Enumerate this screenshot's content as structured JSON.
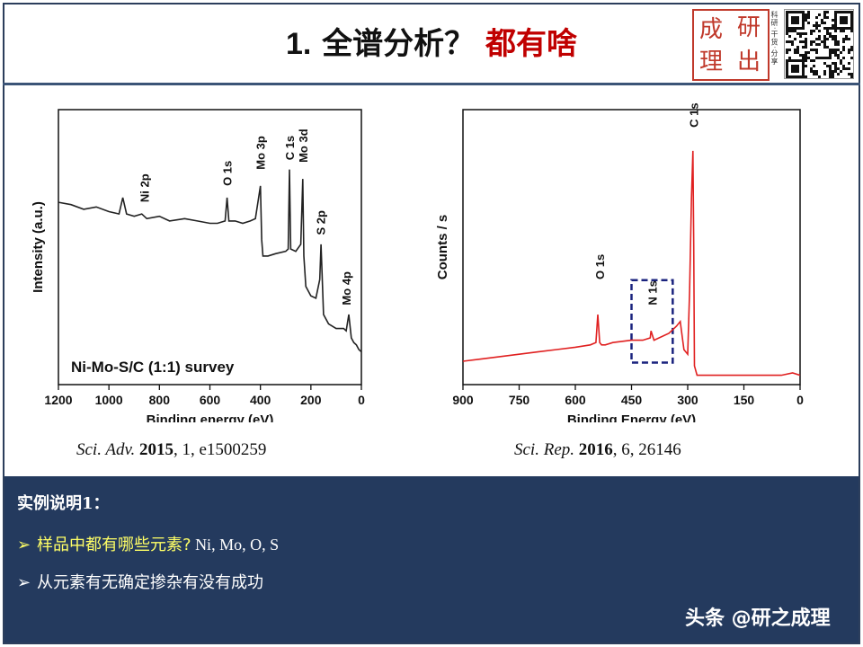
{
  "header": {
    "title_number": "1.",
    "title_main": "全谱分析？",
    "title_red": "都有啥",
    "seal_chars": [
      "成",
      "研",
      "理",
      "出"
    ],
    "seal_side": "科研·干货·分享"
  },
  "chart_data": [
    {
      "type": "line",
      "annotation": "Ni-Mo-S/C (1:1) survey",
      "xlabel": "Binding energy (eV)",
      "ylabel": "Intensity (a.u.)",
      "x_ticks": [
        "1200",
        "1000",
        "800",
        "600",
        "400",
        "200",
        "0"
      ],
      "xlim": [
        1200,
        0
      ],
      "reversed_x": true,
      "color": "#222222",
      "series": [
        {
          "x": [
            1200,
            1150,
            1100,
            1050,
            1000,
            960,
            945,
            930,
            900,
            870,
            850,
            800,
            760,
            700,
            650,
            600,
            570,
            540,
            532,
            525,
            500,
            470,
            440,
            420,
            410,
            400,
            395,
            390,
            370,
            340,
            300,
            290,
            285,
            280,
            260,
            240,
            232,
            228,
            220,
            200,
            180,
            165,
            160,
            150,
            130,
            100,
            70,
            60,
            50,
            40,
            30,
            20,
            10,
            0
          ],
          "y": [
            0.78,
            0.77,
            0.75,
            0.76,
            0.74,
            0.73,
            0.8,
            0.73,
            0.72,
            0.73,
            0.71,
            0.72,
            0.7,
            0.71,
            0.7,
            0.69,
            0.69,
            0.7,
            0.8,
            0.7,
            0.7,
            0.69,
            0.7,
            0.71,
            0.78,
            0.85,
            0.62,
            0.55,
            0.55,
            0.56,
            0.57,
            0.58,
            0.92,
            0.58,
            0.57,
            0.6,
            0.88,
            0.55,
            0.42,
            0.38,
            0.37,
            0.45,
            0.6,
            0.3,
            0.26,
            0.24,
            0.24,
            0.23,
            0.3,
            0.2,
            0.18,
            0.17,
            0.15,
            0.14
          ]
        }
      ],
      "peak_labels": [
        {
          "x": 860,
          "y": 0.78,
          "text": "Ni 2p"
        },
        {
          "x": 532,
          "y": 0.85,
          "text": "O 1s"
        },
        {
          "x": 400,
          "y": 0.92,
          "text": "Mo 3p"
        },
        {
          "x": 285,
          "y": 0.96,
          "text": "C 1s"
        },
        {
          "x": 232,
          "y": 0.95,
          "text": "Mo 3d"
        },
        {
          "x": 162,
          "y": 0.64,
          "text": "S 2p"
        },
        {
          "x": 60,
          "y": 0.34,
          "text": "Mo 4p"
        }
      ],
      "citation": {
        "journal": "Sci. Adv.",
        "year": "2015",
        "rest": ", 1, e1500259"
      }
    },
    {
      "type": "line",
      "xlabel": "Binding Energy (eV)",
      "ylabel": "Counts / s",
      "x_ticks": [
        "900",
        "750",
        "600",
        "450",
        "300",
        "150",
        "0"
      ],
      "xlim": [
        900,
        0
      ],
      "reversed_x": true,
      "color": "#e02020",
      "series": [
        {
          "x": [
            900,
            850,
            800,
            750,
            700,
            650,
            600,
            560,
            545,
            540,
            535,
            530,
            520,
            500,
            450,
            420,
            400,
            398,
            390,
            350,
            330,
            320,
            310,
            300,
            295,
            290,
            286,
            284,
            282,
            275,
            260,
            200,
            150,
            100,
            50,
            20,
            0
          ],
          "y": [
            0.1,
            0.11,
            0.12,
            0.13,
            0.14,
            0.15,
            0.16,
            0.17,
            0.18,
            0.3,
            0.18,
            0.17,
            0.17,
            0.18,
            0.19,
            0.19,
            0.2,
            0.23,
            0.19,
            0.22,
            0.25,
            0.27,
            0.15,
            0.13,
            0.4,
            0.8,
            1.0,
            0.6,
            0.08,
            0.04,
            0.04,
            0.04,
            0.04,
            0.04,
            0.04,
            0.05,
            0.04
          ]
        }
      ],
      "peak_labels": [
        {
          "x": 535,
          "y": 0.45,
          "text": "O 1s"
        },
        {
          "x": 395,
          "y": 0.34,
          "text": "N 1s"
        },
        {
          "x": 284,
          "y": 1.1,
          "text": "C 1s"
        }
      ],
      "highlight_box": {
        "x_from": 450,
        "x_to": 340,
        "style": "dashed",
        "color": "#1a237e"
      },
      "citation": {
        "journal": "Sci. Rep.",
        "year": "2016",
        "rest": ", 6, 26146"
      }
    }
  ],
  "panel": {
    "heading": "实例说明1：",
    "bullet1_cn": "样品中都有哪些元素?",
    "bullet1_en": " Ni, Mo, O, S",
    "bullet2": "从元素有无确定掺杂有没有成功",
    "arrow": "➢"
  },
  "watermark": "头条 @研之成理"
}
